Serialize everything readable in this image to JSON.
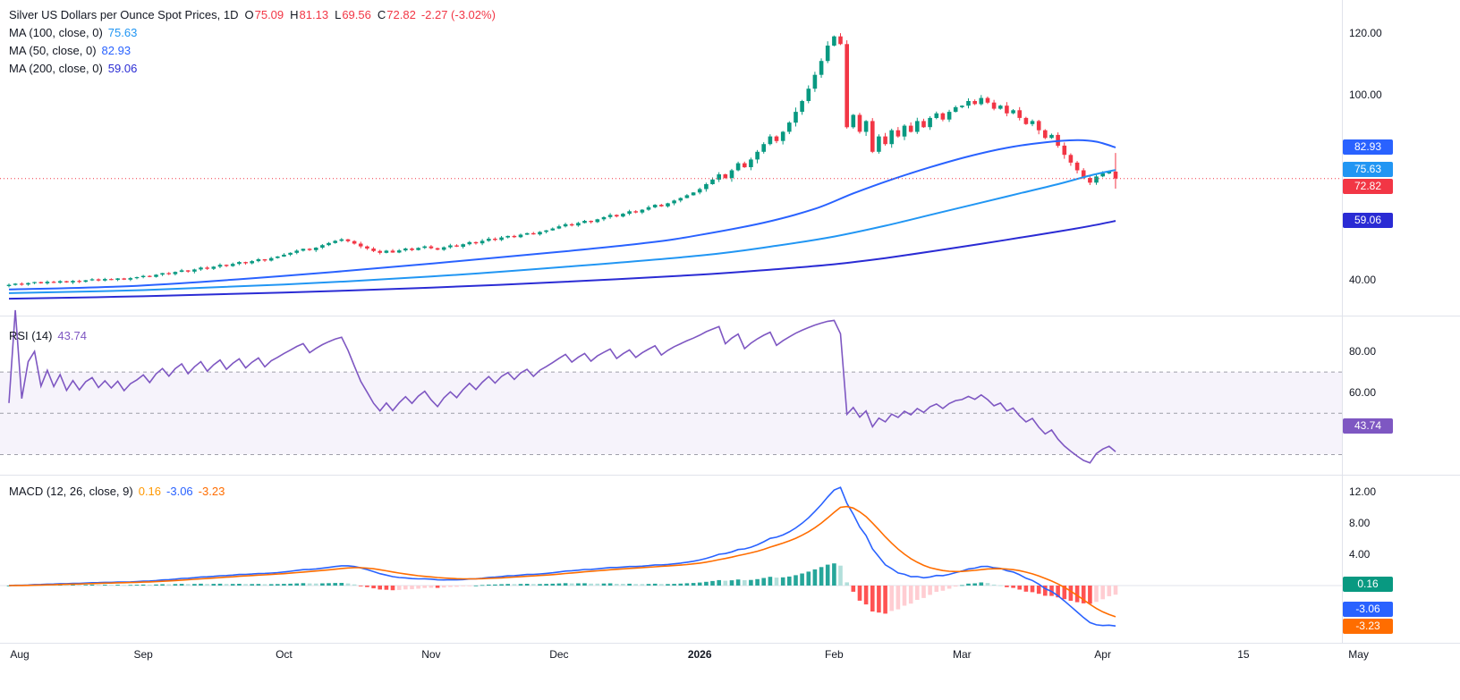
{
  "colors": {
    "up": "#089981",
    "down": "#f23645",
    "ma50": "#2962ff",
    "ma100": "#2196f3",
    "ma200": "#2a2bd4",
    "rsi": "#7e57c2",
    "macd_line": "#2962ff",
    "signal_line": "#ff6d00",
    "hist_grow_above": "#26a69a",
    "hist_fall_above": "#b2dfdb",
    "hist_fall_below": "#ff5252",
    "hist_grow_below": "#ffcdd2",
    "hist_badge": "#089981",
    "text": "#131722",
    "grid": "#e0e3eb",
    "band_line": "#787b86",
    "legend_hist_value": "#ff9800"
  },
  "legend": {
    "title": "Silver US Dollars per Ounce Spot Prices, 1D",
    "ohlc": {
      "o_label": "O",
      "o": "75.09",
      "h_label": "H",
      "h": "81.13",
      "l_label": "L",
      "l": "69.56",
      "c_label": "C",
      "c": "72.82",
      "change": "-2.27 (-3.02%)"
    },
    "ma100": {
      "label": "MA (100, close, 0)",
      "value": "75.63"
    },
    "ma50": {
      "label": "MA (50, close, 0)",
      "value": "82.93"
    },
    "ma200": {
      "label": "MA (200, close, 0)",
      "value": "59.06"
    },
    "rsi": {
      "label": "RSI (14)",
      "value": "43.74"
    },
    "macd": {
      "label": "MACD (12, 26, close, 9)",
      "hist": "0.16",
      "macd": "-3.06",
      "signal": "-3.23"
    }
  },
  "chart_data": {
    "type": "candlestick",
    "title": "Silver US Dollars per Ounce Spot Prices",
    "interval": "1D",
    "x_ticks": [
      {
        "label": "Aug",
        "i": 0
      },
      {
        "label": "Sep",
        "i": 21
      },
      {
        "label": "Oct",
        "i": 43
      },
      {
        "label": "Nov",
        "i": 66
      },
      {
        "label": "Dec",
        "i": 86
      },
      {
        "label": "2026",
        "i": 108,
        "bold": true
      },
      {
        "label": "Feb",
        "i": 129
      },
      {
        "label": "Mar",
        "i": 149
      },
      {
        "label": "Apr",
        "i": 171
      },
      {
        "label": "15",
        "i": 193
      },
      {
        "label": "May",
        "i": 211
      }
    ],
    "closes": [
      38.3,
      38.7,
      38.4,
      38.9,
      39.2,
      38.8,
      39.3,
      39.0,
      39.5,
      39.1,
      39.6,
      39.3,
      39.8,
      40.1,
      39.7,
      40.2,
      39.9,
      40.4,
      40.0,
      40.5,
      40.8,
      41.2,
      40.9,
      41.6,
      42.1,
      41.8,
      42.5,
      43.0,
      42.6,
      43.3,
      43.9,
      43.5,
      44.2,
      44.8,
      44.4,
      45.1,
      45.7,
      45.3,
      46.0,
      46.6,
      46.2,
      47.0,
      47.5,
      48.1,
      48.7,
      49.4,
      50.0,
      49.6,
      50.4,
      51.2,
      51.9,
      52.6,
      53.1,
      52.5,
      51.7,
      50.8,
      50.1,
      49.3,
      48.7,
      49.4,
      48.8,
      49.5,
      50.1,
      49.6,
      50.3,
      50.8,
      50.2,
      49.7,
      50.5,
      51.1,
      50.7,
      51.5,
      52.2,
      51.8,
      52.6,
      53.3,
      52.9,
      53.7,
      54.2,
      53.8,
      54.6,
      55.1,
      54.7,
      55.5,
      56.0,
      56.6,
      57.3,
      58.0,
      57.6,
      58.4,
      59.1,
      58.7,
      59.6,
      60.3,
      61.0,
      60.5,
      61.4,
      62.2,
      61.8,
      62.7,
      63.5,
      64.3,
      63.8,
      64.8,
      65.7,
      66.5,
      67.4,
      68.3,
      69.4,
      71.0,
      72.5,
      74.2,
      73.0,
      75.5,
      77.8,
      76.5,
      79.0,
      81.5,
      84.0,
      86.5,
      85.0,
      88.0,
      91.0,
      94.5,
      98.0,
      102.0,
      106.5,
      111.0,
      116.0,
      119.0,
      116.5,
      89.5,
      93.5,
      88.0,
      91.5,
      81.5,
      86.5,
      84.0,
      88.5,
      86.5,
      90.0,
      88.0,
      91.5,
      89.5,
      92.5,
      94.0,
      92.0,
      94.5,
      96.0,
      96.5,
      98.0,
      97.0,
      99.0,
      97.5,
      95.5,
      96.5,
      94.0,
      95.0,
      92.5,
      90.5,
      91.5,
      88.5,
      86.0,
      87.0,
      83.5,
      80.5,
      78.0,
      75.5,
      73.0,
      71.5,
      73.5,
      74.5,
      75.1,
      72.82
    ],
    "last_candle": {
      "open": 75.09,
      "high": 81.13,
      "low": 69.56,
      "close": 72.82,
      "change": -2.27,
      "change_pct": -3.02
    },
    "price_panel": {
      "value_range": [
        35,
        125
      ],
      "axis_ticks": [
        {
          "label": "120.00",
          "v": 120
        },
        {
          "label": "100.00",
          "v": 100
        },
        {
          "label": "40.00",
          "v": 40
        }
      ],
      "badges": [
        {
          "label": "82.93",
          "v": 82.93,
          "color_key": "ma50"
        },
        {
          "label": "75.63",
          "v": 75.63,
          "color_key": "ma100"
        },
        {
          "label": "72.82",
          "v": 72.82,
          "color_key": "down"
        },
        {
          "label": "59.06",
          "v": 59.06,
          "color_key": "ma200"
        }
      ],
      "current_price": 72.82,
      "ma_lines": [
        {
          "name": "MA 50",
          "color_key": "ma50",
          "last_value": 82.93,
          "points": [
            [
              0,
              36.8
            ],
            [
              20,
              38.0
            ],
            [
              43,
              41.2
            ],
            [
              66,
              45.2
            ],
            [
              86,
              49.0
            ],
            [
              100,
              52.0
            ],
            [
              108,
              54.5
            ],
            [
              118,
              58.5
            ],
            [
              126,
              63.0
            ],
            [
              132,
              68.0
            ],
            [
              138,
              72.5
            ],
            [
              144,
              76.5
            ],
            [
              150,
              80.0
            ],
            [
              156,
              82.8
            ],
            [
              162,
              84.6
            ],
            [
              167,
              85.3
            ],
            [
              170,
              84.8
            ],
            [
              173,
              82.93
            ]
          ]
        },
        {
          "name": "MA 100",
          "color_key": "ma100",
          "last_value": 75.63,
          "points": [
            [
              0,
              35.6
            ],
            [
              21,
              36.6
            ],
            [
              43,
              38.4
            ],
            [
              66,
              41.0
            ],
            [
              86,
              44.0
            ],
            [
              108,
              47.8
            ],
            [
              120,
              51.0
            ],
            [
              129,
              54.0
            ],
            [
              137,
              57.5
            ],
            [
              145,
              61.5
            ],
            [
              152,
              65.0
            ],
            [
              158,
              68.0
            ],
            [
              164,
              71.0
            ],
            [
              169,
              73.8
            ],
            [
              173,
              75.63
            ]
          ]
        },
        {
          "name": "MA 200",
          "color_key": "ma200",
          "last_value": 59.06,
          "points": [
            [
              0,
              33.8
            ],
            [
              21,
              34.6
            ],
            [
              43,
              35.8
            ],
            [
              66,
              37.4
            ],
            [
              86,
              39.2
            ],
            [
              108,
              41.6
            ],
            [
              120,
              43.4
            ],
            [
              129,
              45.0
            ],
            [
              137,
              47.0
            ],
            [
              145,
              49.4
            ],
            [
              152,
              51.6
            ],
            [
              158,
              53.6
            ],
            [
              164,
              55.6
            ],
            [
              169,
              57.4
            ],
            [
              173,
              59.06
            ]
          ]
        }
      ]
    },
    "rsi_panel": {
      "period": 14,
      "value_range": [
        25,
        90
      ],
      "band": [
        30,
        70
      ],
      "mid": 50,
      "axis_ticks": [
        {
          "label": "80.00",
          "v": 80
        },
        {
          "label": "60.00",
          "v": 60
        }
      ],
      "badge": {
        "label": "43.74",
        "v": 43.74,
        "color_key": "rsi"
      },
      "last_value": 43.74
    },
    "macd_panel": {
      "fast": 12,
      "slow": 26,
      "signal": 9,
      "value_range": [
        -6.5,
        13
      ],
      "axis_ticks": [
        {
          "label": "12.00",
          "v": 12
        },
        {
          "label": "8.00",
          "v": 8
        },
        {
          "label": "4.00",
          "v": 4
        }
      ],
      "badges": [
        {
          "label": "0.16",
          "v": 0.16,
          "color_key": "hist_badge"
        },
        {
          "label": "-3.06",
          "v": -3.06,
          "color_key": "macd_line"
        },
        {
          "label": "-3.23",
          "v": -3.23,
          "color_key": "signal_line"
        }
      ],
      "last_values": {
        "hist": 0.16,
        "macd": -3.06,
        "signal": -3.23
      }
    }
  }
}
